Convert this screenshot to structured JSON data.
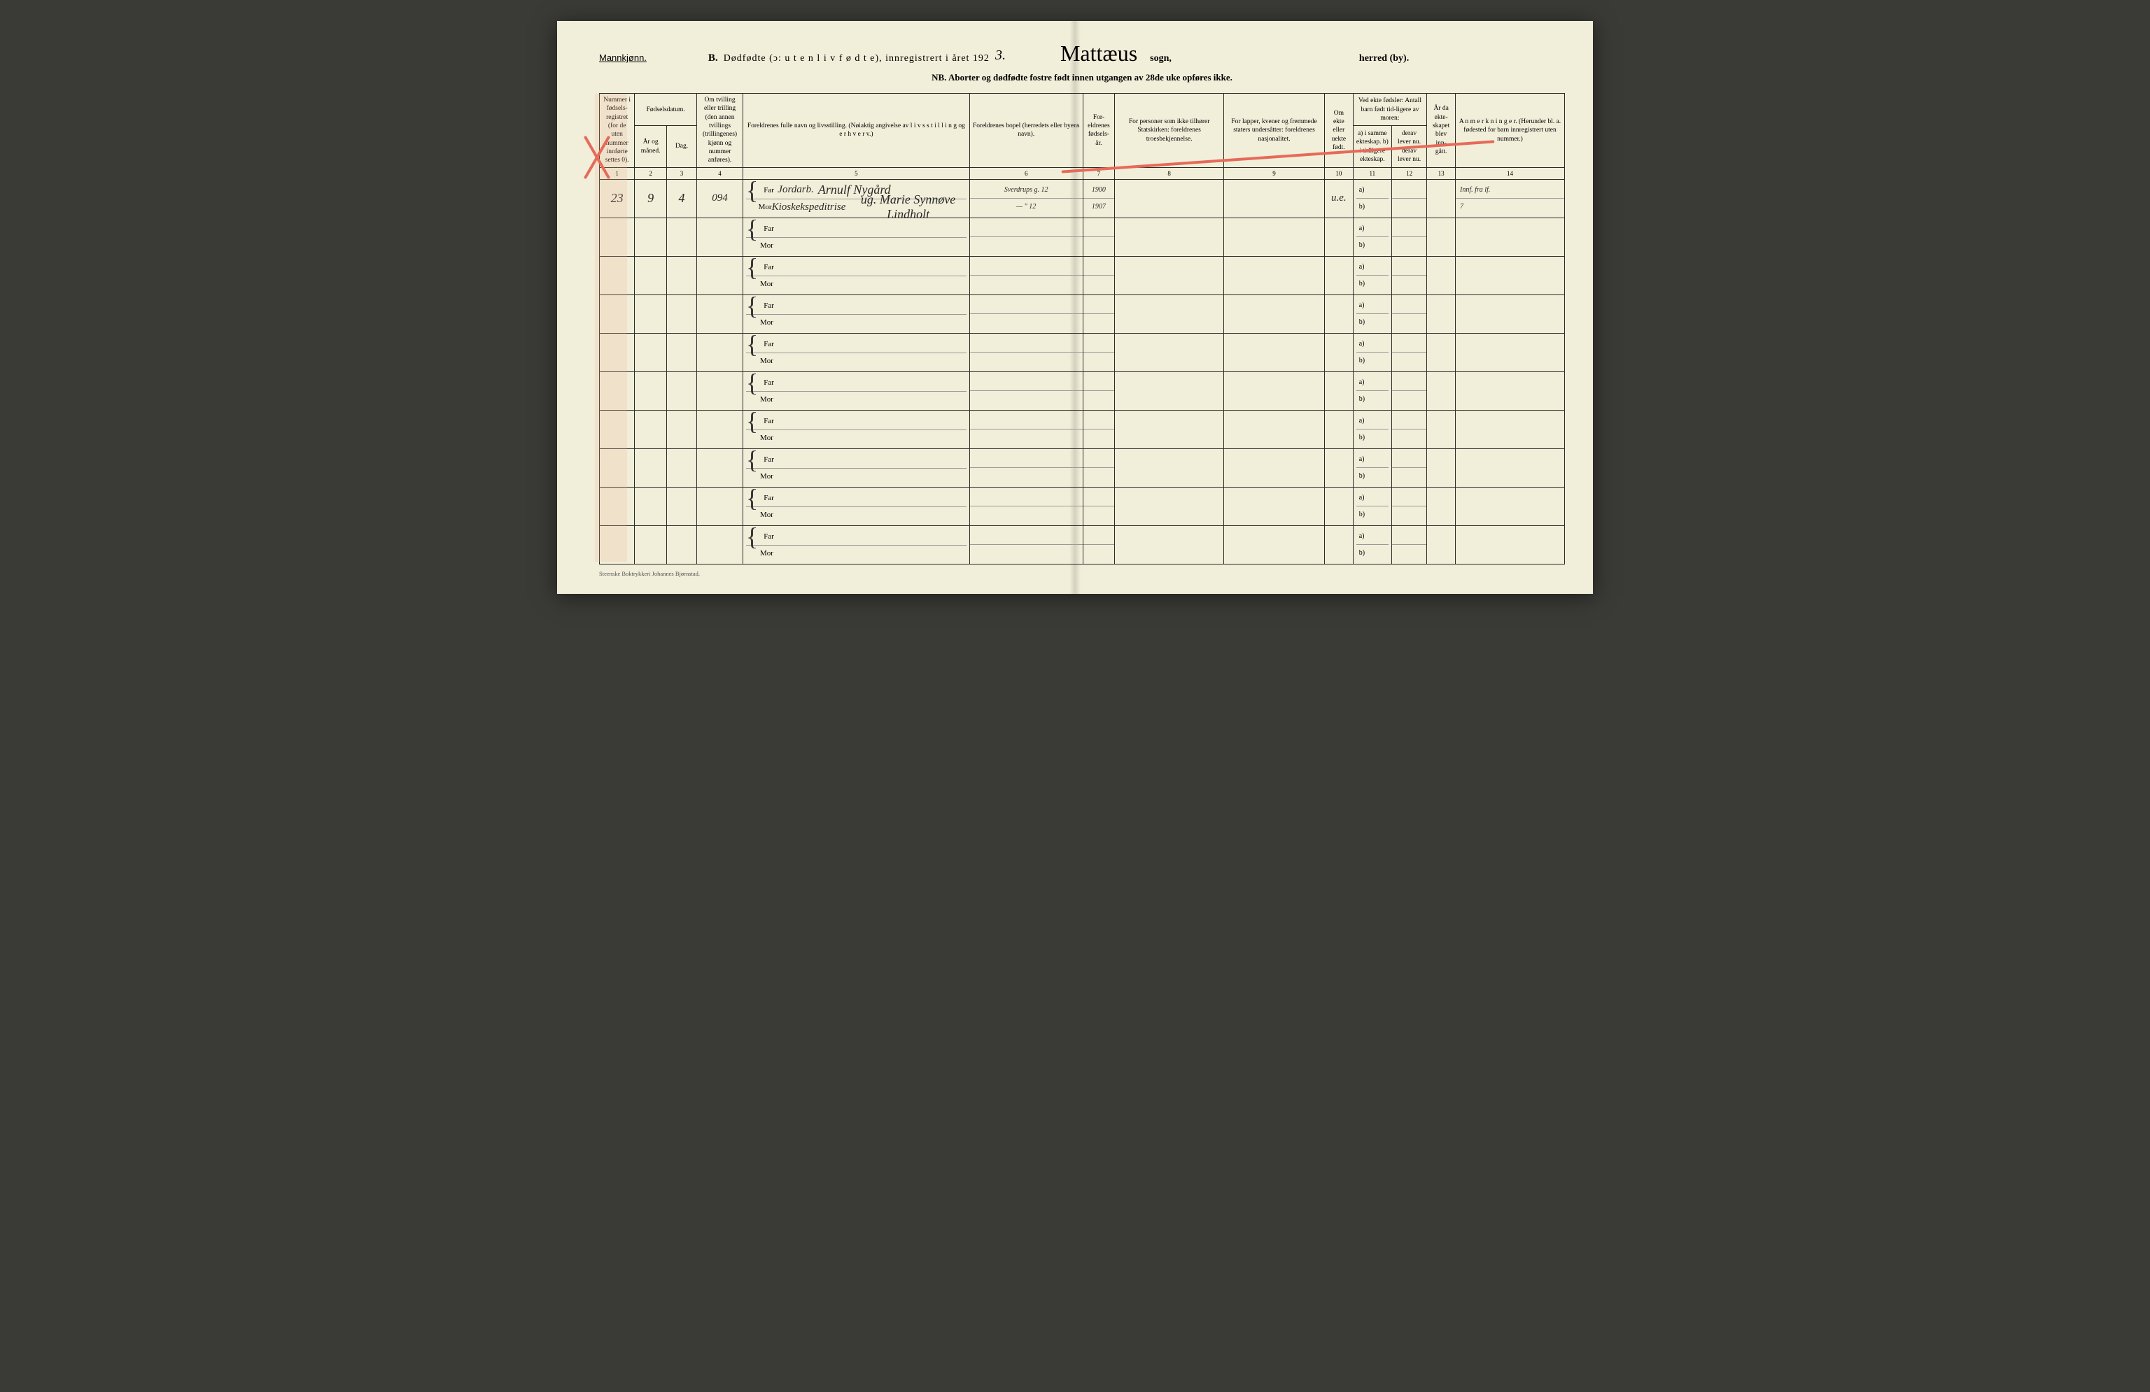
{
  "colors": {
    "paper": "#f1eed9",
    "ink": "#2b2b28",
    "red_pencil": "#e66a5a",
    "margin_band": "rgba(236,180,150,0.22)"
  },
  "header": {
    "gender_label": "Mannkjønn.",
    "section_letter": "B.",
    "title_main": "Dødfødte (ↄ: u t e n  l i v  f ø d t e), innregistrert i året 192",
    "year_suffix": "3.",
    "parish_handwritten": "Mattæus",
    "sogn_label": "sogn,",
    "herred_label": "herred (by).",
    "nb_line": "NB.  Aborter og dødfødte fostre født innen utgangen av 28de uke opføres ikke."
  },
  "column_headers": {
    "c1": "Nummer i fødsels-registret (for de uten nummer innførte settes 0).",
    "c2_group": "Fødselsdatum.",
    "c2": "År og måned.",
    "c3": "Dag.",
    "c4": "Om tvilling eller trilling (den annen tvillings (trillingenes) kjønn og nummer anføres).",
    "c5": "Foreldrenes fulle navn og livsstilling. (Nøiaktig angivelse av l i v s s t i l l i n g  og e r h v e r v.)",
    "c6": "Foreldrenes bopel (herredets eller byens navn).",
    "c7": "For-eldrenes fødsels-år.",
    "c8": "For personer som ikke tilhører Statskirken: foreldrenes troesbekjennelse.",
    "c9": "For lapper, kvener og fremmede staters undersåtter: foreldrenes nasjonalitet.",
    "c10": "Om ekte eller uekte født.",
    "c11_group": "Ved ekte fødsler: Antall barn født tid-ligere av moren:",
    "c11": "a) i samme ekteskap. b) i tidligere ekteskap.",
    "c12": "derav lever nu. derav lever nu.",
    "c13": "År da ekte-skapet blev inn-gått.",
    "c14": "A n m e r k n i n g e r. (Herunder bl. a. fødested for barn innregistrert uten nummer.)"
  },
  "column_numbers": [
    "1",
    "2",
    "3",
    "4",
    "5",
    "6",
    "7",
    "8",
    "9",
    "10",
    "11",
    "12",
    "13",
    "14"
  ],
  "parent_labels": {
    "far": "Far",
    "mor": "Mor"
  },
  "ab_labels": {
    "a": "a)",
    "b": "b)"
  },
  "entry": {
    "number": "23",
    "year_month": "9",
    "day": "4",
    "twin_code": "094",
    "occupation_note": "Jordarb.",
    "far_name": "Arnulf Nygård",
    "mor_name": "ug. Marie Synnøve Lindholt",
    "mor_occupation": "Kioskekspeditrise",
    "residence_far": "Sverdrups g. 12",
    "residence_mor": "— \"   12",
    "far_birth_year": "1900",
    "mor_birth_year": "1907",
    "ekte": "u.e.",
    "remark": "Innf. fra lf.",
    "remark_num": "7"
  },
  "footer": "Steenske Boktrykkeri Johannes Bjørnstad.",
  "empty_rows": 9
}
